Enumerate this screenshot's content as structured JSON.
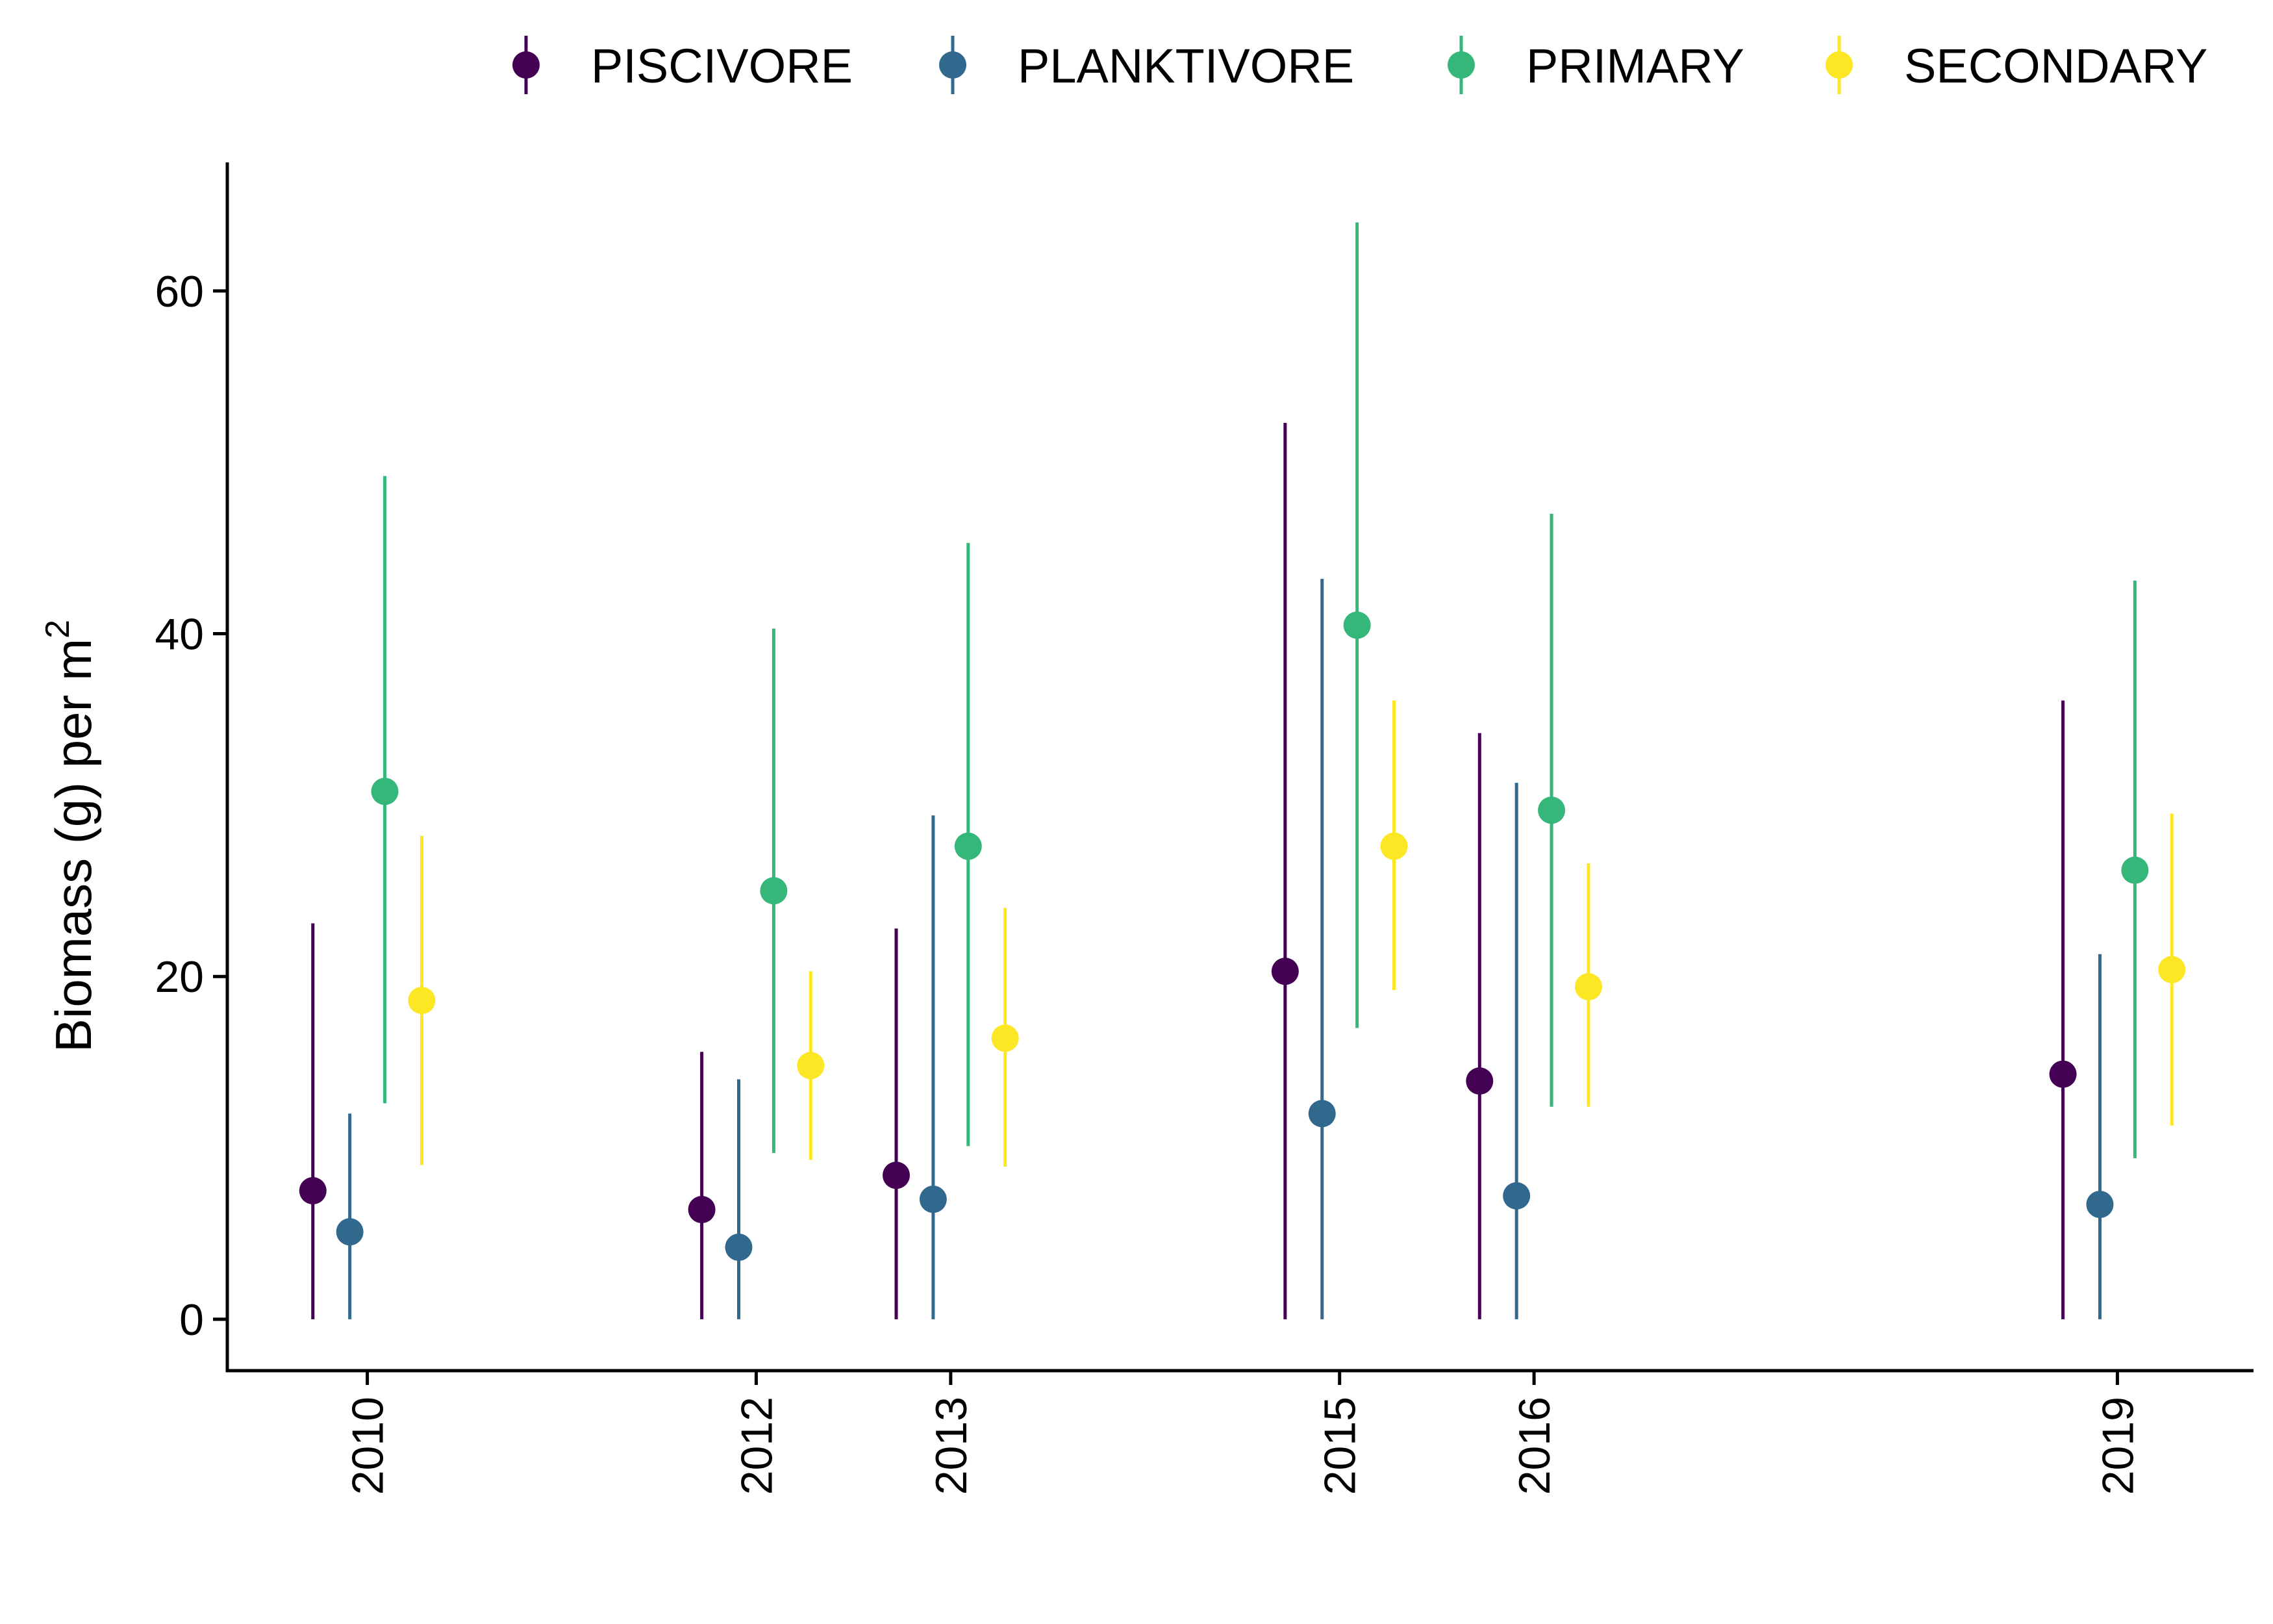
{
  "chart_data": {
    "type": "scatter",
    "title": "",
    "xlabel": "",
    "ylabel": "Biomass (g) per m",
    "ylabel_superscript": "2",
    "x": [
      "2010",
      "2012",
      "2013",
      "2015",
      "2016",
      "2019"
    ],
    "xlim": [
      2009.28,
      2019.7
    ],
    "ylim": [
      -3,
      67.5
    ],
    "yticks": [
      0,
      20,
      40,
      60
    ],
    "ytick_labels": [
      "0",
      "20",
      "40",
      "60"
    ],
    "xtick_labels": [
      "2010",
      "2012",
      "2013",
      "2015",
      "2016",
      "2019"
    ],
    "grid": false,
    "legend_position": "top",
    "error_bars": true,
    "series": [
      {
        "name": "PISCIVORE",
        "color": "#440154",
        "values": [
          7.5,
          6.4,
          8.4,
          20.3,
          13.9,
          14.3
        ],
        "lower": [
          0,
          0,
          0,
          0,
          0,
          0
        ],
        "upper": [
          23.1,
          15.6,
          22.8,
          52.3,
          34.2,
          36.1
        ]
      },
      {
        "name": "PLANKTIVORE",
        "color": "#31688E",
        "values": [
          5.1,
          4.2,
          7.0,
          12.0,
          7.2,
          6.7
        ],
        "lower": [
          0,
          0,
          0,
          0,
          0,
          0
        ],
        "upper": [
          12.0,
          14.0,
          29.4,
          43.2,
          31.3,
          21.3
        ]
      },
      {
        "name": "PRIMARY",
        "color": "#35B779",
        "values": [
          30.8,
          25.0,
          27.6,
          40.5,
          29.7,
          26.2
        ],
        "lower": [
          12.6,
          9.7,
          10.1,
          17.0,
          12.4,
          9.4
        ],
        "upper": [
          49.2,
          40.3,
          45.3,
          64.0,
          47.0,
          43.1
        ]
      },
      {
        "name": "SECONDARY",
        "color": "#FDE725",
        "values": [
          18.6,
          14.8,
          16.4,
          27.6,
          19.4,
          20.4
        ],
        "lower": [
          9.0,
          9.3,
          8.9,
          19.2,
          12.4,
          11.3
        ],
        "upper": [
          28.2,
          20.3,
          24.0,
          36.1,
          26.6,
          29.5
        ]
      }
    ]
  }
}
